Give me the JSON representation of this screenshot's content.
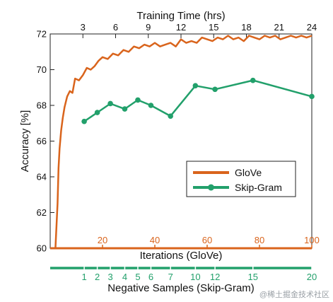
{
  "chart_data": {
    "type": "line",
    "ylabel": "Accuracy [%]",
    "ylim": [
      60,
      72
    ],
    "yticks": [
      60,
      62,
      64,
      66,
      68,
      70,
      72
    ],
    "top_axis": {
      "label": "Training Time (hrs)",
      "ticks": [
        3,
        6,
        9,
        12,
        15,
        18,
        21,
        24
      ],
      "range": [
        0,
        24
      ]
    },
    "bottom_axis_orange": {
      "label": "Iterations (GloVe)",
      "ticks": [
        20,
        40,
        60,
        80,
        100
      ],
      "range": [
        0,
        100
      ],
      "color": "#d9641c"
    },
    "bottom_axis_green": {
      "label": "Negative Samples (Skip-Gram)",
      "ticks": [
        "1",
        "2",
        "3",
        "4",
        "5",
        "6",
        "7",
        "10",
        "12",
        "15",
        "20"
      ],
      "tick_positions": [
        13,
        18,
        23,
        28.5,
        33.5,
        38.5,
        46,
        55.5,
        63,
        77.5,
        100
      ],
      "range": [
        0,
        100
      ],
      "color": "#22a06b"
    },
    "series": [
      {
        "name": "GloVe",
        "color": "#d9641c",
        "x": [
          0,
          2.0,
          2.8,
          3.2,
          3.6,
          4.2,
          4.8,
          5.5,
          6.5,
          7.5,
          8.5,
          9.5,
          11,
          12.5,
          14,
          15.5,
          17,
          18.5,
          20,
          22,
          24,
          26,
          28,
          30,
          32,
          34,
          36,
          38,
          40,
          42,
          44,
          46,
          48,
          50,
          52,
          54,
          56,
          58,
          60,
          62,
          64,
          66,
          68,
          70,
          72,
          74,
          76,
          78,
          80,
          82,
          84,
          86,
          88,
          90,
          92,
          94,
          96,
          98,
          100
        ],
        "y": [
          60,
          60,
          62.5,
          64.5,
          65.6,
          66.6,
          67.3,
          67.9,
          68.5,
          68.8,
          68.7,
          69.5,
          69.4,
          69.7,
          70.1,
          70.0,
          70.2,
          70.5,
          70.7,
          70.6,
          70.9,
          70.8,
          71.1,
          71.0,
          71.3,
          71.2,
          71.4,
          71.3,
          71.5,
          71.3,
          71.4,
          71.5,
          71.3,
          71.7,
          71.5,
          71.6,
          71.5,
          71.8,
          71.7,
          71.6,
          71.8,
          71.7,
          71.9,
          71.7,
          71.8,
          71.6,
          71.9,
          71.8,
          71.7,
          71.9,
          71.8,
          71.9,
          71.7,
          71.8,
          71.9,
          71.8,
          71.9,
          71.8,
          71.9
        ]
      },
      {
        "name": "Skip-Gram",
        "color": "#22a06b",
        "x": [
          13,
          18,
          23,
          28.5,
          33.5,
          38.5,
          46,
          55.5,
          63,
          77.5,
          100
        ],
        "y": [
          67.1,
          67.6,
          68.1,
          67.8,
          68.3,
          68.0,
          67.4,
          69.1,
          68.9,
          69.4,
          68.5
        ]
      }
    ],
    "legend": {
      "placement": "lower-right",
      "entries": [
        "GloVe",
        "Skip-Gram"
      ]
    },
    "grid": false
  },
  "watermark": "@稀土掘金技术社区"
}
